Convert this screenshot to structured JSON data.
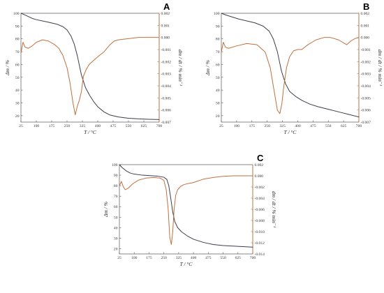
{
  "chart_data": [
    {
      "type": "line",
      "panel": "A",
      "xlabel": "T / °C",
      "ylabel_left": "Δm / %",
      "ylabel_right": "dm / dt / % min⁻¹",
      "xlim": [
        25,
        700
      ],
      "ylim_left": [
        15,
        100
      ],
      "ylim_right": [
        -0.007,
        0.002
      ],
      "x_ticks": [
        25,
        100,
        175,
        250,
        325,
        400,
        475,
        550,
        625,
        700
      ],
      "y_left_ticks": [
        20,
        30,
        40,
        50,
        60,
        70,
        80,
        90,
        100
      ],
      "y_right_ticks": [
        0.002,
        0.001,
        0.0,
        -0.001,
        -0.002,
        -0.003,
        -0.004,
        -0.005,
        -0.006,
        -0.007
      ],
      "y_left_tick_labels": [
        "20",
        "30",
        "40",
        "50",
        "60",
        "70",
        "80",
        "90",
        "100"
      ],
      "y_right_tick_labels": [
        "0.002",
        "0.001",
        "0.000",
        "-0.001",
        "-0.002",
        "-0.003",
        "-0.004",
        "-0.005",
        "-0.006",
        "-0.007"
      ],
      "colors": {
        "mass": "#3d3d4a",
        "dtg": "#c0703d"
      },
      "series": [
        {
          "axis": "left",
          "x": [
            25,
            40,
            60,
            80,
            100,
            130,
            160,
            200,
            230,
            250,
            270,
            285,
            300,
            320,
            340,
            360,
            380,
            400,
            430,
            460,
            500,
            550,
            600,
            650,
            700
          ],
          "values": [
            100,
            99,
            97.5,
            96,
            95,
            94,
            93,
            91.5,
            89.5,
            87,
            82,
            76,
            67,
            52,
            42,
            36,
            31,
            27,
            23,
            20.5,
            19,
            18,
            17.5,
            17.2,
            17
          ]
        },
        {
          "axis": "right",
          "x": [
            25,
            35,
            45,
            60,
            80,
            100,
            130,
            160,
            190,
            210,
            230,
            250,
            265,
            280,
            290,
            300,
            310,
            320,
            330,
            345,
            360,
            380,
            400,
            430,
            460,
            480,
            500,
            550,
            600,
            650,
            700
          ],
          "values": [
            -0.0013,
            -0.0004,
            -0.0008,
            -0.0009,
            -0.0007,
            -0.0004,
            -0.0002,
            -0.0003,
            -0.0006,
            -0.0009,
            -0.0015,
            -0.0025,
            -0.0038,
            -0.0055,
            -0.0064,
            -0.0057,
            -0.0052,
            -0.0045,
            -0.0032,
            -0.0026,
            -0.0022,
            -0.0019,
            -0.0016,
            -0.0012,
            -0.0006,
            -0.0003,
            -0.0002,
            -0.0001,
            0.0,
            0.0,
            0.0
          ]
        }
      ]
    },
    {
      "type": "line",
      "panel": "B",
      "xlabel": "T / °C",
      "ylabel_left": "Δm / %",
      "ylabel_right": "dm / dt / % min⁻¹",
      "xlim": [
        25,
        700
      ],
      "ylim_left": [
        15,
        100
      ],
      "ylim_right": [
        -0.007,
        0.002
      ],
      "x_ticks": [
        25,
        100,
        175,
        250,
        325,
        400,
        475,
        550,
        625,
        700
      ],
      "y_left_ticks": [
        20,
        30,
        40,
        50,
        60,
        70,
        80,
        90,
        100
      ],
      "y_right_ticks": [
        0.002,
        0.001,
        0.0,
        -0.001,
        -0.002,
        -0.003,
        -0.004,
        -0.005,
        -0.006,
        -0.007
      ],
      "y_left_tick_labels": [
        "20",
        "30",
        "40",
        "50",
        "60",
        "70",
        "80",
        "90",
        "100"
      ],
      "y_right_tick_labels": [
        "0.002",
        "0.001",
        "0.000",
        "-0.001",
        "-0.002",
        "-0.003",
        "-0.004",
        "-0.005",
        "-0.006",
        "-0.007"
      ],
      "colors": {
        "mass": "#3d3d4a",
        "dtg": "#c0703d"
      },
      "series": [
        {
          "axis": "left",
          "x": [
            25,
            50,
            80,
            110,
            150,
            190,
            230,
            260,
            280,
            300,
            320,
            340,
            360,
            390,
            420,
            460,
            500,
            550,
            600,
            650,
            700
          ],
          "values": [
            100,
            98.5,
            97,
            95.5,
            94,
            92.5,
            90,
            86,
            80,
            70,
            55,
            45,
            39,
            35,
            32,
            29,
            27,
            25,
            23,
            21,
            19
          ]
        },
        {
          "axis": "right",
          "x": [
            25,
            35,
            45,
            60,
            100,
            150,
            200,
            240,
            265,
            285,
            300,
            312,
            322,
            332,
            345,
            360,
            380,
            400,
            420,
            450,
            490,
            530,
            560,
            600,
            640,
            660,
            680,
            700
          ],
          "values": [
            -0.0012,
            -0.0004,
            -0.0008,
            -0.0009,
            -0.0007,
            -0.0005,
            -0.0006,
            -0.0012,
            -0.0025,
            -0.0045,
            -0.006,
            -0.0063,
            -0.0055,
            -0.004,
            -0.0025,
            -0.0016,
            -0.0011,
            -0.001,
            -0.001,
            -0.0006,
            -0.0002,
            0.0,
            0.0,
            -0.0002,
            -0.0006,
            -0.0003,
            -0.0001,
            0.0
          ]
        }
      ]
    },
    {
      "type": "line",
      "panel": "C",
      "xlabel": "T / °C",
      "ylabel_left": "Δm / %",
      "ylabel_right": "dm / dt / % min⁻¹",
      "xlim": [
        25,
        700
      ],
      "ylim_left": [
        15,
        100
      ],
      "ylim_right": [
        -0.014,
        0.002
      ],
      "x_ticks": [
        25,
        100,
        175,
        250,
        325,
        400,
        475,
        550,
        625,
        700
      ],
      "y_left_ticks": [
        20,
        30,
        40,
        50,
        60,
        70,
        80,
        90,
        100
      ],
      "y_right_ticks": [
        0.002,
        0.0,
        -0.002,
        -0.004,
        -0.006,
        -0.008,
        -0.01,
        -0.012,
        -0.014
      ],
      "y_left_tick_labels": [
        "20",
        "30",
        "40",
        "50",
        "60",
        "70",
        "80",
        "90",
        "100"
      ],
      "y_right_tick_labels": [
        "0.002",
        "0.000",
        "-0.002",
        "-0.004",
        "-0.006",
        "-0.008",
        "-0.010",
        "-0.012",
        "-0.014"
      ],
      "colors": {
        "mass": "#3d3d4a",
        "dtg": "#c0703d"
      },
      "series": [
        {
          "axis": "left",
          "x": [
            25,
            40,
            60,
            80,
            100,
            140,
            180,
            220,
            250,
            265,
            275,
            285,
            295,
            305,
            320,
            340,
            370,
            400,
            450,
            500,
            550,
            600,
            650,
            700
          ],
          "values": [
            100,
            97,
            94,
            92,
            91,
            90,
            89.5,
            89,
            88,
            86,
            80,
            68,
            55,
            46,
            40,
            36,
            32,
            29,
            26,
            24,
            23,
            22.5,
            22,
            21.5
          ]
        },
        {
          "axis": "right",
          "x": [
            25,
            35,
            45,
            55,
            70,
            90,
            120,
            160,
            200,
            230,
            250,
            262,
            272,
            280,
            288,
            295,
            302,
            310,
            320,
            335,
            350,
            370,
            400,
            450,
            500,
            550,
            600,
            650,
            700
          ],
          "values": [
            -0.0018,
            -0.001,
            -0.002,
            -0.0025,
            -0.0022,
            -0.0015,
            -0.0008,
            -0.0004,
            -0.0003,
            -0.0004,
            -0.0008,
            -0.0025,
            -0.006,
            -0.011,
            -0.0123,
            -0.01,
            -0.006,
            -0.0035,
            -0.0025,
            -0.0019,
            -0.0016,
            -0.0014,
            -0.0012,
            -0.0006,
            -0.0003,
            -0.0001,
            0.0,
            0.0,
            0.0
          ]
        }
      ]
    }
  ]
}
